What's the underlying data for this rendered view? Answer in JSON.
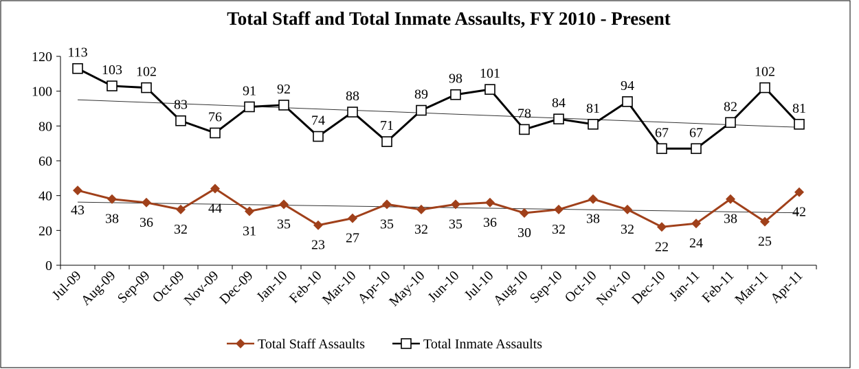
{
  "chart_data": {
    "type": "line",
    "title": "Total Staff and Total Inmate Assaults, FY 2010 - Present",
    "categories": [
      "Jul-09",
      "Aug-09",
      "Sep-09",
      "Oct-09",
      "Nov-09",
      "Dec-09",
      "Jan-10",
      "Feb-10",
      "Mar-10",
      "Apr-10",
      "May-10",
      "Jun-10",
      "Jul-10",
      "Aug-10",
      "Sep-10",
      "Oct-10",
      "Nov-10",
      "Dec-10",
      "Jan-11",
      "Feb-11",
      "Mar-11",
      "Apr-11"
    ],
    "series": [
      {
        "name": "Total Staff Assaults",
        "color": "#a0401a",
        "marker": "diamond",
        "label_position": "below",
        "values": [
          43,
          38,
          36,
          32,
          44,
          31,
          35,
          23,
          27,
          35,
          32,
          35,
          36,
          30,
          32,
          38,
          32,
          22,
          24,
          38,
          25,
          42
        ]
      },
      {
        "name": "Total Inmate Assaults",
        "color": "#000000",
        "marker": "square",
        "label_position": "above",
        "values": [
          113,
          103,
          102,
          83,
          76,
          91,
          92,
          74,
          88,
          71,
          89,
          98,
          101,
          78,
          84,
          81,
          94,
          67,
          67,
          82,
          102,
          81
        ]
      }
    ],
    "trendline": true,
    "ylim": [
      0,
      120
    ],
    "yticks": [
      0,
      20,
      40,
      60,
      80,
      100,
      120
    ],
    "legend": "bottom"
  }
}
